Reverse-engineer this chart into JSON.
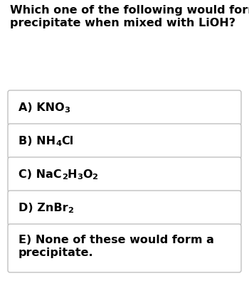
{
  "title_line1": "Which one of the following would form a",
  "title_line2": "precipitate when mixed with LiOH?",
  "bg_color": "#ffffff",
  "box_color": "#ffffff",
  "border_color": "#c0c0c0",
  "text_color": "#000000",
  "title_fontsize": 11.5,
  "option_fontsize": 11.5,
  "sub_fontsize_ratio": 0.72,
  "options": [
    {
      "parts": [
        [
          "A) KNO",
          false
        ],
        [
          "3",
          true
        ]
      ]
    },
    {
      "parts": [
        [
          "B) NH",
          false
        ],
        [
          "4",
          true
        ],
        [
          "Cl",
          false
        ]
      ]
    },
    {
      "parts": [
        [
          "C) NaC",
          false
        ],
        [
          "2",
          true
        ],
        [
          "H",
          false
        ],
        [
          "3",
          true
        ],
        [
          "O",
          false
        ],
        [
          "2",
          true
        ]
      ]
    },
    {
      "parts": [
        [
          "D) ZnBr",
          false
        ],
        [
          "2",
          true
        ]
      ]
    },
    {
      "parts": [
        [
          "E) None of these would form a\nprecipitate.",
          false
        ]
      ]
    }
  ]
}
